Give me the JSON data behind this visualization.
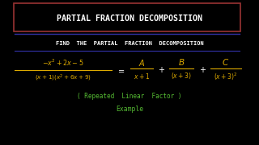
{
  "background_color": "#000000",
  "title_text": "Partial Fraction Decomposition",
  "title_color": "#ffffff",
  "title_box_edge_color": "#993333",
  "subtitle_text": "Find  The  Partial  Fraction  Decomposition",
  "subtitle_color": "#ffffff",
  "line_color": "#3333aa",
  "fraction_color": "#ddaa00",
  "note_color": "#55bb33",
  "equals_color": "#ffffff",
  "figsize": [
    3.2,
    1.8
  ],
  "dpi": 100
}
